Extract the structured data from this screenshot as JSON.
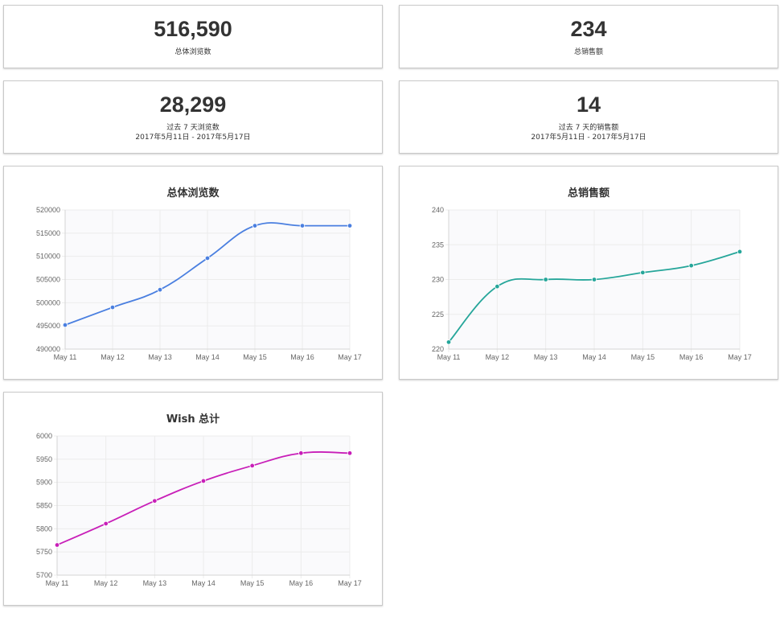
{
  "stats": [
    {
      "value": "516,590",
      "label": "总体浏览数",
      "range": ""
    },
    {
      "value": "234",
      "label": "总销售额",
      "range": ""
    },
    {
      "value": "28,299",
      "label": "过去 7 天浏览数",
      "range": "2017年5月11日 - 2017年5月17日"
    },
    {
      "value": "14",
      "label": "过去 7 天的销售额",
      "range": "2017年5月11日 - 2017年5月17日"
    }
  ],
  "chart_data": [
    {
      "type": "line",
      "title": "总体浏览数",
      "categories": [
        "May 11",
        "May 12",
        "May 13",
        "May 14",
        "May 15",
        "May 16",
        "May 17"
      ],
      "values": [
        495200,
        499000,
        502800,
        509600,
        516600,
        516600,
        516600
      ],
      "ylim": [
        490000,
        520000
      ],
      "yticks": [
        "490000",
        "495000",
        "500000",
        "505000",
        "510000",
        "515000",
        "520000"
      ],
      "color": "#4a7fe0",
      "grid": true,
      "legend": "none"
    },
    {
      "type": "line",
      "title": "总销售额",
      "categories": [
        "May 11",
        "May 12",
        "May 13",
        "May 14",
        "May 15",
        "May 16",
        "May 17"
      ],
      "values": [
        221,
        229,
        230,
        230,
        231,
        232,
        234
      ],
      "ylim": [
        220,
        240
      ],
      "yticks": [
        "220",
        "225",
        "230",
        "235",
        "240"
      ],
      "color": "#26a69a",
      "grid": true,
      "legend": "none"
    },
    {
      "type": "line",
      "title": "Wish 总计",
      "categories": [
        "May 11",
        "May 12",
        "May 13",
        "May 14",
        "May 15",
        "May 16",
        "May 17"
      ],
      "values": [
        5765,
        5811,
        5860,
        5903,
        5936,
        5963,
        5963
      ],
      "ylim": [
        5700,
        6000
      ],
      "yticks": [
        "5700",
        "5750",
        "5800",
        "5850",
        "5900",
        "5950",
        "6000"
      ],
      "color": "#c81fb8",
      "grid": true,
      "legend": "none"
    }
  ]
}
